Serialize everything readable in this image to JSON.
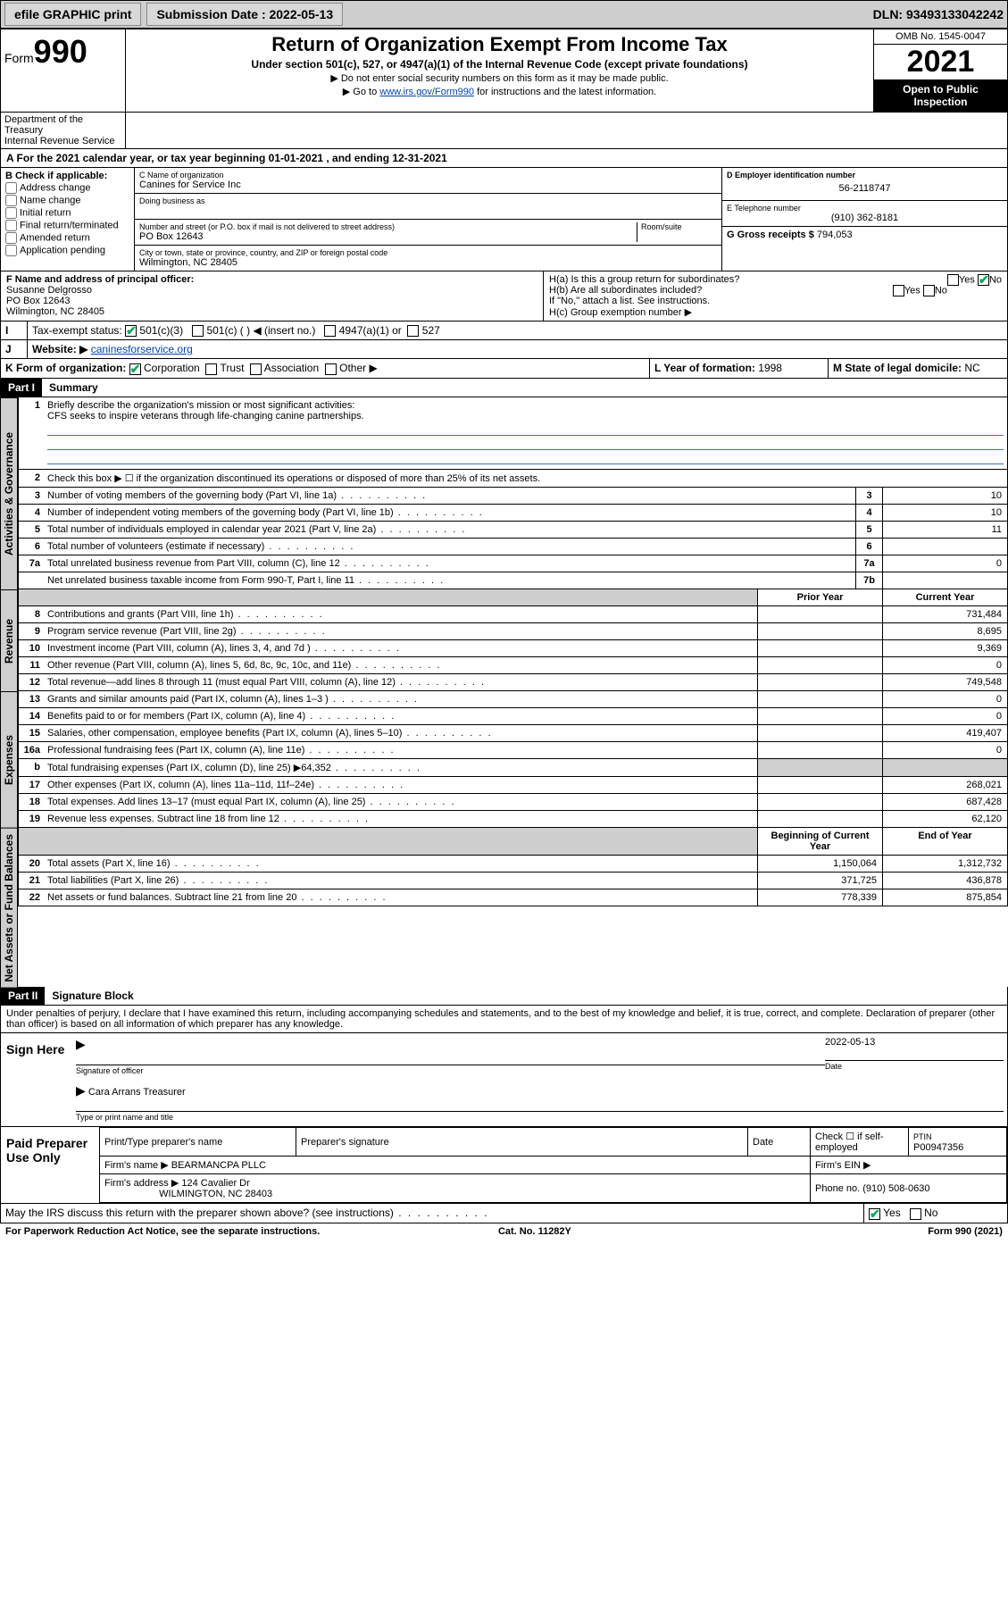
{
  "topbar": {
    "efile": "efile GRAPHIC print",
    "submission_label": "Submission Date : 2022-05-13",
    "dln": "DLN: 93493133042242"
  },
  "header": {
    "form_label": "Form",
    "form_num": "990",
    "title": "Return of Organization Exempt From Income Tax",
    "sub": "Under section 501(c), 527, or 4947(a)(1) of the Internal Revenue Code (except private foundations)",
    "note1": "▶ Do not enter social security numbers on this form as it may be made public.",
    "note2_pre": "▶ Go to ",
    "note2_link": "www.irs.gov/Form990",
    "note2_post": " for instructions and the latest information.",
    "omb": "OMB No. 1545-0047",
    "year": "2021",
    "open": "Open to Public Inspection",
    "dept": "Department of the Treasury\nInternal Revenue Service"
  },
  "line_a": "A For the 2021 calendar year, or tax year beginning 01-01-2021  , and ending 12-31-2021",
  "box_b": {
    "hdr": "B Check if applicable:",
    "items": [
      "Address change",
      "Name change",
      "Initial return",
      "Final return/terminated",
      "Amended return",
      "Application pending"
    ]
  },
  "box_c": {
    "name_label": "C Name of organization",
    "name": "Canines for Service Inc",
    "dba_label": "Doing business as",
    "addr_label": "Number and street (or P.O. box if mail is not delivered to street address)",
    "room_label": "Room/suite",
    "addr": "PO Box 12643",
    "city_label": "City or town, state or province, country, and ZIP or foreign postal code",
    "city": "Wilmington, NC  28405"
  },
  "box_d": {
    "label": "D Employer identification number",
    "ein": "56-2118747"
  },
  "box_e": {
    "label": "E Telephone number",
    "phone": "(910) 362-8181"
  },
  "box_g": {
    "label": "G Gross receipts $",
    "amount": "794,053"
  },
  "box_f": {
    "label": "F Name and address of principal officer:",
    "name": "Susanne Delgrosso",
    "addr1": "PO Box 12643",
    "addr2": "Wilmington, NC  28405"
  },
  "box_h": {
    "a": "H(a)  Is this a group return for subordinates?",
    "b": "H(b)  Are all subordinates included?",
    "note": "If \"No,\" attach a list. See instructions.",
    "c": "H(c)  Group exemption number ▶",
    "yes": "Yes",
    "no": "No"
  },
  "row_i": {
    "label": "Tax-exempt status:",
    "opt1": "501(c)(3)",
    "opt2": "501(c) (   ) ◀ (insert no.)",
    "opt3": "4947(a)(1) or",
    "opt4": "527"
  },
  "row_j": {
    "label": "Website: ▶",
    "val": "caninesforservice.org"
  },
  "row_k": {
    "label": "K Form of organization:",
    "corp": "Corporation",
    "trust": "Trust",
    "assoc": "Association",
    "other": "Other ▶"
  },
  "row_l": {
    "label": "L Year of formation:",
    "val": "1998"
  },
  "row_m": {
    "label": "M State of legal domicile:",
    "val": "NC"
  },
  "part1": {
    "hdr": "Part I",
    "title": "Summary",
    "l1": "Briefly describe the organization's mission or most significant activities:",
    "mission": "CFS seeks to inspire veterans through life-changing canine partnerships.",
    "l2": "Check this box ▶ ☐  if the organization discontinued its operations or disposed of more than 25% of its net assets.",
    "lines_gov": [
      {
        "n": "3",
        "d": "Number of voting members of the governing body (Part VI, line 1a)",
        "b": "3",
        "v": "10"
      },
      {
        "n": "4",
        "d": "Number of independent voting members of the governing body (Part VI, line 1b)",
        "b": "4",
        "v": "10"
      },
      {
        "n": "5",
        "d": "Total number of individuals employed in calendar year 2021 (Part V, line 2a)",
        "b": "5",
        "v": "11"
      },
      {
        "n": "6",
        "d": "Total number of volunteers (estimate if necessary)",
        "b": "6",
        "v": ""
      },
      {
        "n": "7a",
        "d": "Total unrelated business revenue from Part VIII, column (C), line 12",
        "b": "7a",
        "v": "0"
      },
      {
        "n": "",
        "d": "Net unrelated business taxable income from Form 990-T, Part I, line 11",
        "b": "7b",
        "v": ""
      }
    ],
    "col_prior": "Prior Year",
    "col_curr": "Current Year",
    "rev": [
      {
        "n": "8",
        "d": "Contributions and grants (Part VIII, line 1h)",
        "p": "",
        "c": "731,484"
      },
      {
        "n": "9",
        "d": "Program service revenue (Part VIII, line 2g)",
        "p": "",
        "c": "8,695"
      },
      {
        "n": "10",
        "d": "Investment income (Part VIII, column (A), lines 3, 4, and 7d )",
        "p": "",
        "c": "9,369"
      },
      {
        "n": "11",
        "d": "Other revenue (Part VIII, column (A), lines 5, 6d, 8c, 9c, 10c, and 11e)",
        "p": "",
        "c": "0"
      },
      {
        "n": "12",
        "d": "Total revenue—add lines 8 through 11 (must equal Part VIII, column (A), line 12)",
        "p": "",
        "c": "749,548"
      }
    ],
    "exp": [
      {
        "n": "13",
        "d": "Grants and similar amounts paid (Part IX, column (A), lines 1–3 )",
        "p": "",
        "c": "0"
      },
      {
        "n": "14",
        "d": "Benefits paid to or for members (Part IX, column (A), line 4)",
        "p": "",
        "c": "0"
      },
      {
        "n": "15",
        "d": "Salaries, other compensation, employee benefits (Part IX, column (A), lines 5–10)",
        "p": "",
        "c": "419,407"
      },
      {
        "n": "16a",
        "d": "Professional fundraising fees (Part IX, column (A), line 11e)",
        "p": "",
        "c": "0"
      },
      {
        "n": "b",
        "d": "Total fundraising expenses (Part IX, column (D), line 25) ▶64,352",
        "p": "shade",
        "c": "shade"
      },
      {
        "n": "17",
        "d": "Other expenses (Part IX, column (A), lines 11a–11d, 11f–24e)",
        "p": "",
        "c": "268,021"
      },
      {
        "n": "18",
        "d": "Total expenses. Add lines 13–17 (must equal Part IX, column (A), line 25)",
        "p": "",
        "c": "687,428"
      },
      {
        "n": "19",
        "d": "Revenue less expenses. Subtract line 18 from line 12",
        "p": "",
        "c": "62,120"
      }
    ],
    "col_begin": "Beginning of Current Year",
    "col_end": "End of Year",
    "net": [
      {
        "n": "20",
        "d": "Total assets (Part X, line 16)",
        "p": "1,150,064",
        "c": "1,312,732"
      },
      {
        "n": "21",
        "d": "Total liabilities (Part X, line 26)",
        "p": "371,725",
        "c": "436,878"
      },
      {
        "n": "22",
        "d": "Net assets or fund balances. Subtract line 21 from line 20",
        "p": "778,339",
        "c": "875,854"
      }
    ],
    "vtab_gov": "Activities & Governance",
    "vtab_rev": "Revenue",
    "vtab_exp": "Expenses",
    "vtab_net": "Net Assets or Fund Balances"
  },
  "part2": {
    "hdr": "Part II",
    "title": "Signature Block",
    "decl": "Under penalties of perjury, I declare that I have examined this return, including accompanying schedules and statements, and to the best of my knowledge and belief, it is true, correct, and complete. Declaration of preparer (other than officer) is based on all information of which preparer has any knowledge.",
    "sign_here": "Sign Here",
    "sig_officer": "Signature of officer",
    "date": "2022-05-13",
    "date_lbl": "Date",
    "name_title": "Cara Arrans  Treasurer",
    "name_title_lbl": "Type or print name and title",
    "paid": "Paid Preparer Use Only",
    "pt_name_lbl": "Print/Type preparer's name",
    "pt_sig_lbl": "Preparer's signature",
    "pt_date_lbl": "Date",
    "pt_check": "Check ☐ if self-employed",
    "ptin_lbl": "PTIN",
    "ptin": "P00947356",
    "firm_name_lbl": "Firm's name   ▶",
    "firm_name": "BEARMANCPA PLLC",
    "firm_ein_lbl": "Firm's EIN ▶",
    "firm_addr_lbl": "Firm's address ▶",
    "firm_addr1": "124 Cavalier Dr",
    "firm_addr2": "WILMINGTON, NC  28403",
    "firm_phone_lbl": "Phone no.",
    "firm_phone": "(910) 508-0630",
    "may_irs": "May the IRS discuss this return with the preparer shown above? (see instructions)"
  },
  "footer": {
    "left": "For Paperwork Reduction Act Notice, see the separate instructions.",
    "mid": "Cat. No. 11282Y",
    "right": "Form 990 (2021)"
  },
  "colors": {
    "topbar_bg": "#cfcfcf",
    "link": "#0645ad",
    "check": "#00aa55",
    "ul": "#3a6db5"
  }
}
